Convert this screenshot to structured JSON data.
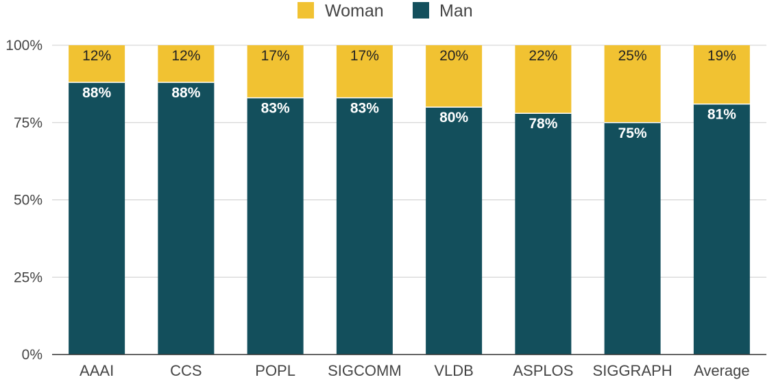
{
  "chart_data": {
    "type": "bar",
    "stacked": true,
    "categories": [
      "AAAI",
      "CCS",
      "POPL",
      "SIGCOMM",
      "VLDB",
      "ASPLOS",
      "SIGGRAPH",
      "Average"
    ],
    "series": [
      {
        "name": "Woman",
        "color": "#f1c232",
        "values": [
          12,
          12,
          17,
          17,
          20,
          22,
          25,
          19
        ],
        "labels": [
          "12%",
          "12%",
          "17%",
          "17%",
          "20%",
          "22%",
          "25%",
          "19%"
        ]
      },
      {
        "name": "Man",
        "color": "#134f5c",
        "values": [
          88,
          88,
          83,
          83,
          80,
          78,
          75,
          81
        ],
        "labels": [
          "88%",
          "88%",
          "83%",
          "83%",
          "80%",
          "78%",
          "75%",
          "81%"
        ]
      }
    ],
    "ylim": [
      0,
      100
    ],
    "yticks": [
      0,
      25,
      50,
      75,
      100
    ],
    "ytick_labels": [
      "0%",
      "25%",
      "50%",
      "75%",
      "100%"
    ],
    "grid": true,
    "legend_position": "top-center"
  }
}
